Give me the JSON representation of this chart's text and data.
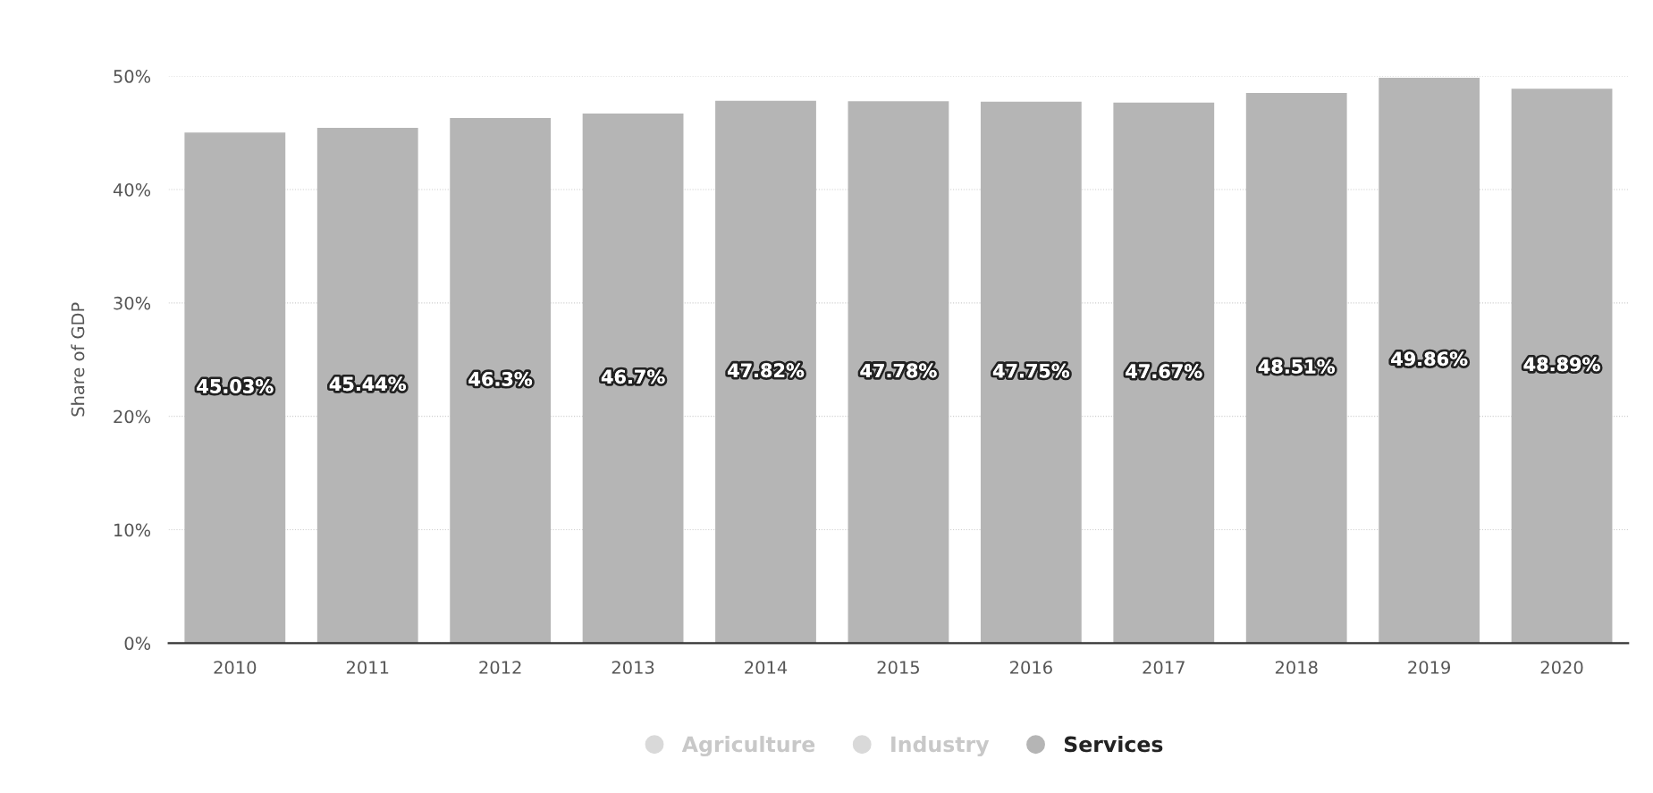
{
  "chart_data": {
    "type": "bar",
    "ylabel": "Share of GDP",
    "categories": [
      "2010",
      "2011",
      "2012",
      "2013",
      "2014",
      "2015",
      "2016",
      "2017",
      "2018",
      "2019",
      "2020"
    ],
    "series": [
      {
        "name": "Agriculture",
        "color": "#d9d9d9",
        "values": [
          null,
          null,
          null,
          null,
          null,
          null,
          null,
          null,
          null,
          null,
          null
        ]
      },
      {
        "name": "Industry",
        "color": "#d9d9d9",
        "values": [
          null,
          null,
          null,
          null,
          null,
          null,
          null,
          null,
          null,
          null,
          null
        ]
      },
      {
        "name": "Services",
        "color": "#b5b5b5",
        "values": [
          45.03,
          45.44,
          46.3,
          46.7,
          47.82,
          47.78,
          47.75,
          47.67,
          48.51,
          49.86,
          48.89
        ],
        "value_labels": [
          "45.03%",
          "45.44%",
          "46.3%",
          "46.7%",
          "47.82%",
          "47.78%",
          "47.75%",
          "47.67%",
          "48.51%",
          "49.86%",
          "48.89%"
        ]
      }
    ],
    "ylim": [
      0,
      50
    ],
    "yticks": [
      {
        "value": 0,
        "label": "0%"
      },
      {
        "value": 10,
        "label": "10%"
      },
      {
        "value": 20,
        "label": "20%"
      },
      {
        "value": 30,
        "label": "30%"
      },
      {
        "value": 40,
        "label": "40%"
      },
      {
        "value": 50,
        "label": "50%"
      }
    ],
    "grid": "y",
    "legend": "bottom"
  }
}
